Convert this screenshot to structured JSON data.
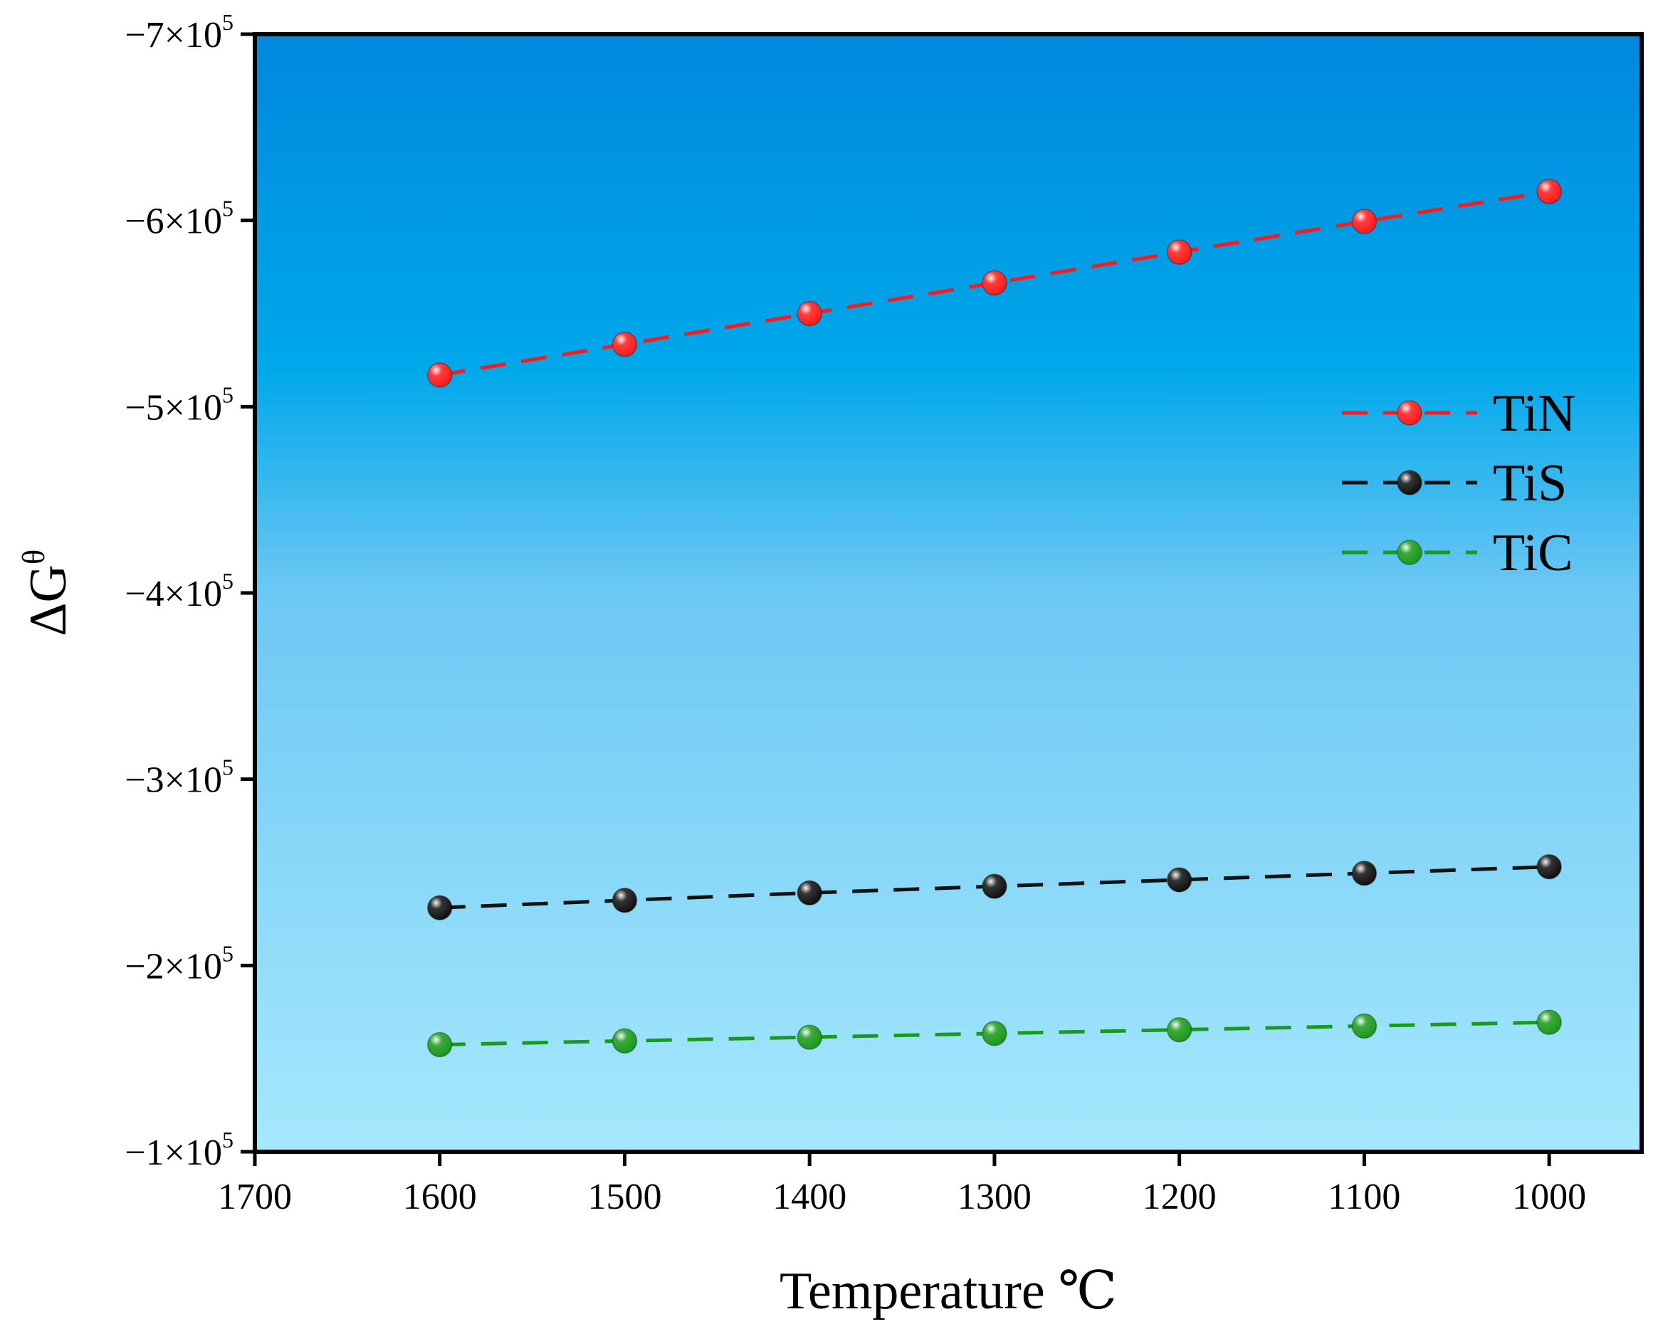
{
  "chart_data": {
    "type": "line",
    "xlabel": "Temperature ℃",
    "ylabel_main": "ΔG",
    "ylabel_sup": "θ",
    "xlim": [
      1700,
      950
    ],
    "ylim": [
      -100000,
      -700000
    ],
    "x_ticks": [
      1700,
      1600,
      1500,
      1400,
      1300,
      1200,
      1100,
      1000
    ],
    "x_tick_labels": [
      "1700",
      "1600",
      "1500",
      "1400",
      "1300",
      "1200",
      "1100",
      "1000"
    ],
    "y_ticks": [
      {
        "value": -700000,
        "label": "−7×10",
        "exp": "5"
      },
      {
        "value": -600000,
        "label": "−6×10",
        "exp": "5"
      },
      {
        "value": -500000,
        "label": "−5×10",
        "exp": "5"
      },
      {
        "value": -400000,
        "label": "−4×10",
        "exp": "5"
      },
      {
        "value": -300000,
        "label": "−3×10",
        "exp": "5"
      },
      {
        "value": -200000,
        "label": "−2×10",
        "exp": "5"
      },
      {
        "value": -100000,
        "label": "−1×10",
        "exp": "5"
      }
    ],
    "x": [
      1600,
      1500,
      1400,
      1300,
      1200,
      1100,
      1000
    ],
    "series": [
      {
        "name": "TiN",
        "color": "#ff1a1a",
        "values": [
          -517000,
          -533500,
          -550000,
          -566500,
          -583000,
          -599500,
          -615500
        ]
      },
      {
        "name": "TiS",
        "color": "#111111",
        "values": [
          -231000,
          -235000,
          -239000,
          -242500,
          -246000,
          -249500,
          -253000
        ]
      },
      {
        "name": "TiC",
        "color": "#1a9a1a",
        "values": [
          -157500,
          -159500,
          -161500,
          -163500,
          -165500,
          -167500,
          -169500
        ]
      }
    ],
    "legend_position": "right",
    "background_gradient": [
      "#0088dd",
      "#00a8ea",
      "#6dc8f4",
      "#a6e8fd"
    ]
  }
}
